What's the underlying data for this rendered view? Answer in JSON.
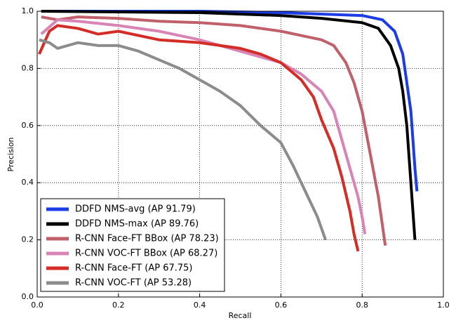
{
  "chart_data": {
    "type": "line",
    "xlabel": "Recall",
    "ylabel": "Precision",
    "xlim": [
      0,
      1
    ],
    "ylim": [
      0,
      1
    ],
    "xticks": [
      {
        "value": 0,
        "label": "0.0"
      },
      0.2,
      0.4,
      0.6,
      0.8,
      {
        "value": 1,
        "label": "1.0"
      }
    ],
    "yticks": [
      {
        "value": 0,
        "label": "0.0"
      },
      0.2,
      0.4,
      0.6,
      0.8,
      {
        "value": 1,
        "label": "1.0"
      }
    ],
    "grid": true,
    "legend": "lower left",
    "series": [
      {
        "name": "DDFD NMS-avg (AP 91.79)",
        "color": "#1c3ce6",
        "x": [
          0.01,
          0.4,
          0.6,
          0.8,
          0.85,
          0.88,
          0.9,
          0.91,
          0.92,
          0.925,
          0.93,
          0.935
        ],
        "values": [
          1.0,
          1.0,
          0.995,
          0.985,
          0.97,
          0.93,
          0.85,
          0.75,
          0.65,
          0.55,
          0.45,
          0.37
        ]
      },
      {
        "name": "DDFD NMS-max (AP 89.76)",
        "color": "#000000",
        "x": [
          0.01,
          0.4,
          0.6,
          0.7,
          0.8,
          0.84,
          0.87,
          0.89,
          0.9,
          0.91,
          0.915,
          0.92,
          0.925,
          0.93
        ],
        "values": [
          1.0,
          0.995,
          0.985,
          0.975,
          0.96,
          0.94,
          0.88,
          0.8,
          0.72,
          0.6,
          0.5,
          0.4,
          0.3,
          0.2
        ]
      },
      {
        "name": "R-CNN Face-FT BBox (AP 78.23)",
        "color": "#c0606a",
        "x": [
          0.01,
          0.05,
          0.1,
          0.2,
          0.3,
          0.4,
          0.5,
          0.6,
          0.7,
          0.73,
          0.76,
          0.78,
          0.8,
          0.82,
          0.84,
          0.85,
          0.857
        ],
        "values": [
          0.98,
          0.97,
          0.98,
          0.975,
          0.965,
          0.96,
          0.95,
          0.93,
          0.9,
          0.88,
          0.82,
          0.75,
          0.65,
          0.5,
          0.35,
          0.25,
          0.18
        ]
      },
      {
        "name": "R-CNN VOC-FT BBox (AP 68.27)",
        "color": "#d884b4",
        "x": [
          0.01,
          0.05,
          0.1,
          0.2,
          0.3,
          0.4,
          0.5,
          0.6,
          0.65,
          0.7,
          0.73,
          0.75,
          0.77,
          0.79,
          0.8,
          0.807
        ],
        "values": [
          0.92,
          0.97,
          0.965,
          0.95,
          0.93,
          0.9,
          0.86,
          0.82,
          0.78,
          0.72,
          0.65,
          0.55,
          0.45,
          0.35,
          0.28,
          0.22
        ]
      },
      {
        "name": "R-CNN Face-FT (AP 67.75)",
        "color": "#d42d28",
        "x": [
          0.005,
          0.03,
          0.05,
          0.1,
          0.15,
          0.2,
          0.3,
          0.4,
          0.5,
          0.55,
          0.6,
          0.65,
          0.68,
          0.7,
          0.73,
          0.75,
          0.77,
          0.78,
          0.79
        ],
        "values": [
          0.85,
          0.93,
          0.95,
          0.94,
          0.92,
          0.93,
          0.9,
          0.89,
          0.87,
          0.85,
          0.82,
          0.76,
          0.7,
          0.62,
          0.52,
          0.42,
          0.3,
          0.22,
          0.16
        ]
      },
      {
        "name": "R-CNN VOC-FT (AP 53.28)",
        "color": "#8c8c8c",
        "x": [
          0.005,
          0.03,
          0.05,
          0.1,
          0.15,
          0.2,
          0.25,
          0.3,
          0.35,
          0.4,
          0.45,
          0.5,
          0.55,
          0.6,
          0.63,
          0.66,
          0.69,
          0.71
        ],
        "values": [
          0.9,
          0.89,
          0.87,
          0.89,
          0.88,
          0.88,
          0.86,
          0.83,
          0.8,
          0.76,
          0.72,
          0.67,
          0.6,
          0.54,
          0.46,
          0.37,
          0.28,
          0.2
        ]
      }
    ]
  }
}
